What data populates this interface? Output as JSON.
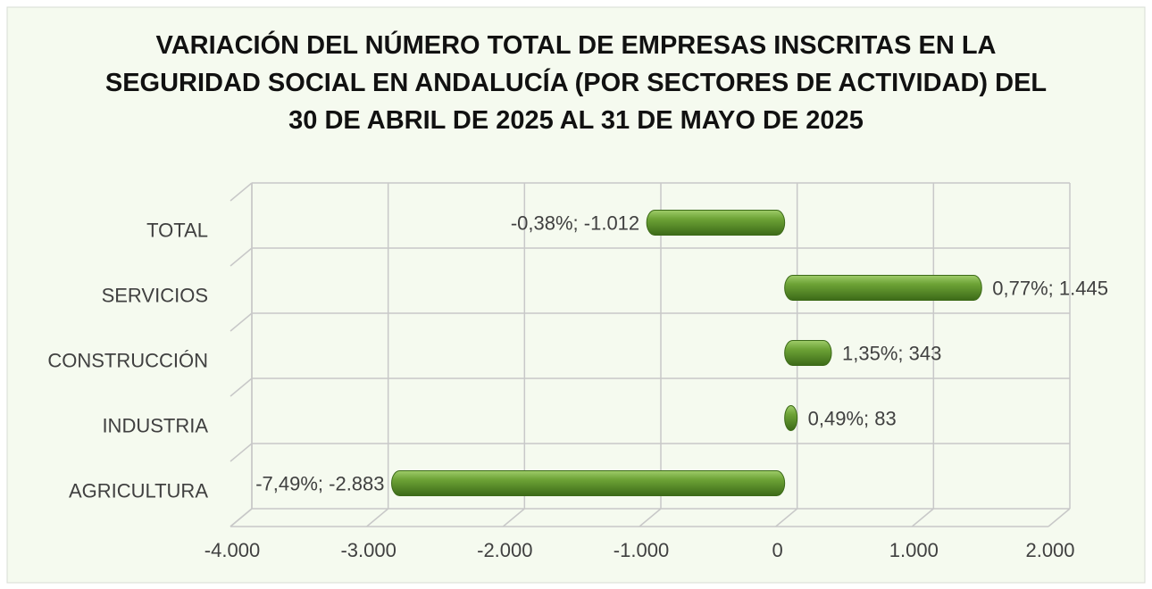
{
  "chart_data": {
    "type": "bar",
    "orientation": "horizontal",
    "title": "VARIACIÓN DEL NÚMERO TOTAL DE EMPRESAS INSCRITAS EN LA SEGURIDAD SOCIAL EN ANDALUCÍA (POR SECTORES DE ACTIVIDAD) DEL 30 DE ABRIL DE 2025 AL 31 DE MAYO DE 2025",
    "categories": [
      "TOTAL",
      "SERVICIOS",
      "CONSTRUCCIÓN",
      "INDUSTRIA",
      "AGRICULTURA"
    ],
    "values": [
      -1012,
      1445,
      343,
      83,
      -2883
    ],
    "value_labels": [
      "-0,38%; -1.012",
      "0,77%; 1.445",
      "1,35%; 343",
      "0,49%; 83",
      "-7,49%; -2.883"
    ],
    "color": "#5a8f2a",
    "xlim": [
      -4000,
      2000
    ],
    "xticks": [
      {
        "value": -4000,
        "label": "-4.000"
      },
      {
        "value": -3000,
        "label": "-3.000"
      },
      {
        "value": -2000,
        "label": "-2.000"
      },
      {
        "value": -1000,
        "label": "-1.000"
      },
      0,
      {
        "value": 1000,
        "label": "1.000"
      },
      {
        "value": 2000,
        "label": "2.000"
      }
    ],
    "grid": true
  }
}
